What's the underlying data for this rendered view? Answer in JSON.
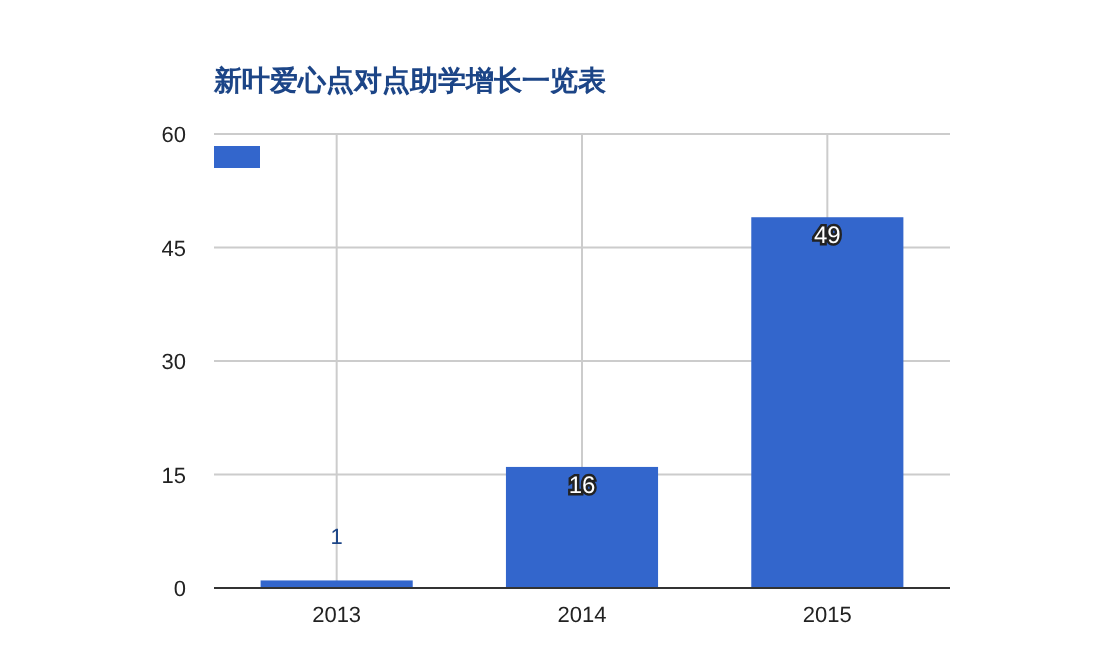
{
  "chart_data": {
    "type": "bar",
    "title": "新叶爱心点对点助学增长一览表",
    "categories": [
      "2013",
      "2014",
      "2015"
    ],
    "series": [
      {
        "color": "#3366cc",
        "values": [
          1,
          16,
          49
        ]
      }
    ],
    "ylim": [
      0,
      60
    ],
    "yticks": [
      0,
      15,
      30,
      45,
      60
    ],
    "grid": true,
    "data_labels": true
  }
}
